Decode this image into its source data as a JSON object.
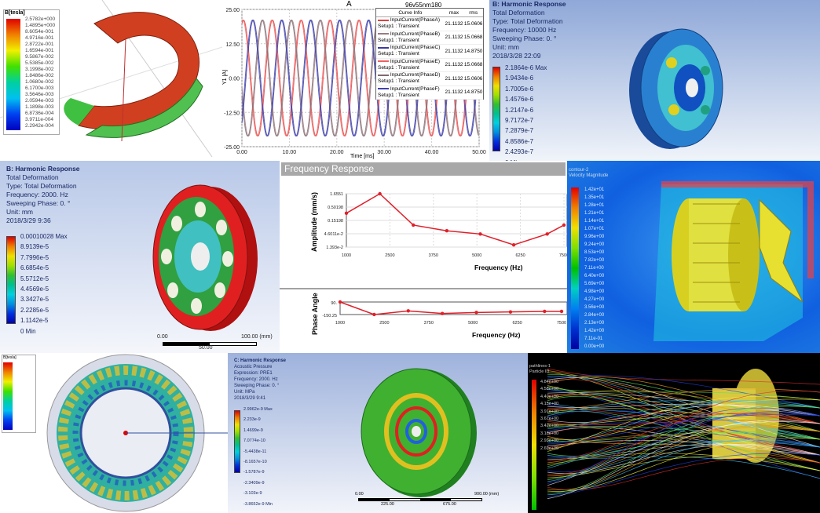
{
  "p1": {
    "legend_title": "B[tesla]",
    "legend_values": [
      "2.5782e+000",
      "1.4895e+000",
      "8.6054e-001",
      "4.9716e-001",
      "2.8722e-001",
      "1.6594e-001",
      "9.5867e-002",
      "5.5385e-002",
      "3.1998e-002",
      "1.8486e-002",
      "1.0680e-002",
      "6.1700e-003",
      "3.5646e-003",
      "2.0594e-003",
      "1.1898e-003",
      "6.8736e-004",
      "3.9711e-004",
      "2.2942e-004"
    ]
  },
  "chart_data": [
    {
      "type": "line",
      "title": "A",
      "subtitle": "96v55nm180",
      "xlabel": "Time [ms]",
      "ylabel": "Y1 [A]",
      "xlim": [
        0,
        50
      ],
      "ylim": [
        -25,
        25
      ],
      "xticks": [
        "0.00",
        "10.00",
        "20.00",
        "30.00",
        "40.00",
        "50.00"
      ],
      "yticks": [
        "25.00",
        "12.50",
        "0.00",
        "-12.50",
        "-25.00"
      ],
      "grid": true,
      "waveform": "sine",
      "amplitude": 21.1132,
      "period_ms": 6.1,
      "legend_headers": [
        "Curve Info",
        "max",
        "rms"
      ],
      "series": [
        {
          "name": "InputCurrent(PhaseA)",
          "source": "Setup1 : Transient",
          "max": "21.1132",
          "rms": "15.0606",
          "color": "#e04040",
          "phase_deg": 0
        },
        {
          "name": "InputCurrent(PhaseB)",
          "source": "Setup1 : Transient",
          "max": "21.1132",
          "rms": "15.0668",
          "color": "#9a7a80",
          "phase_deg": 120
        },
        {
          "name": "InputCurrent(PhaseC)",
          "source": "Setup1 : Transient",
          "max": "21.1132",
          "rms": "14.8750",
          "color": "#3a3aa0",
          "phase_deg": 240
        },
        {
          "name": "InputCurrent(PhaseE)",
          "source": "Setup1 : Transient",
          "max": "21.1132",
          "rms": "15.0668",
          "color": "#f06060",
          "phase_deg": 10
        },
        {
          "name": "InputCurrent(PhaseD)",
          "source": "Setup1 : Transient",
          "max": "21.1132",
          "rms": "15.0606",
          "color": "#806870",
          "phase_deg": 130
        },
        {
          "name": "InputCurrent(PhaseF)",
          "source": "Setup1 : Transient",
          "max": "21.1132",
          "rms": "14.8750",
          "color": "#4040b0",
          "phase_deg": 250
        }
      ]
    },
    {
      "type": "line",
      "title": "Frequency Response",
      "xlabel": "Frequency (Hz)",
      "ylabel": "Amplitude (mm/s)",
      "yscale": "log",
      "xlim": [
        1000,
        7500
      ],
      "xticks": [
        "1000",
        "2500",
        "3750",
        "5000",
        "6250",
        "7500"
      ],
      "yticks": [
        "1.6551",
        "0.50198",
        "0.15198",
        "4.6011e-2",
        "1.393e-2"
      ],
      "grid": true,
      "color": "#e0202a",
      "x": [
        1000,
        2000,
        3000,
        4000,
        5000,
        6000,
        7000,
        7500
      ],
      "y": [
        0.29,
        1.6551,
        0.1,
        0.06,
        0.045,
        0.017,
        0.045,
        0.1
      ]
    },
    {
      "type": "line",
      "xlabel": "Frequency (Hz)",
      "ylabel": "Phase Angle",
      "xlim": [
        1000,
        7500
      ],
      "ylim": [
        -150.25,
        90
      ],
      "xticks": [
        "1000",
        "2500",
        "3750",
        "5000",
        "6250",
        "7500"
      ],
      "yticks": [
        "90.",
        "-150.25"
      ],
      "color": "#e0202a",
      "x": [
        1000,
        2000,
        3000,
        4000,
        5000,
        6000,
        7000,
        7500
      ],
      "y": [
        90,
        -150,
        -80,
        -130,
        -110,
        -100,
        -90,
        -90
      ]
    }
  ],
  "p3": {
    "lines": [
      "B: Harmonic Response",
      "Total Deformation",
      "Type: Total Deformation",
      "Frequency: 10000 Hz",
      "Sweeping Phase: 0. °",
      "Unit: mm",
      "2018/3/28 22:09"
    ],
    "values": [
      "2.1864e-6 Max",
      "1.9434e-6",
      "1.7005e-6",
      "1.4576e-6",
      "1.2147e-6",
      "9.7172e-7",
      "7.2879e-7",
      "4.8586e-7",
      "2.4293e-7",
      "0 Min"
    ]
  },
  "p4": {
    "lines": [
      "B: Harmonic Response",
      "Total Deformation",
      "Type: Total Deformation",
      "Frequency: 2000. Hz",
      "Sweeping Phase: 0. °",
      "Unit: mm",
      "2018/3/29 9:36"
    ],
    "values": [
      "0.00010028 Max",
      "8.9139e-5",
      "7.7996e-5",
      "6.6854e-5",
      "5.5712e-5",
      "4.4569e-5",
      "3.3427e-5",
      "2.2285e-5",
      "1.1142e-5",
      "0 Min"
    ],
    "scale": {
      "start": "0.00",
      "end": "100.00 (mm)",
      "mid": "50.00"
    }
  },
  "p6": {
    "legend_title": "contour-2",
    "legend_subtitle": "Velocity Magnitude",
    "values": [
      "1.42e+01",
      "1.35e+01",
      "1.28e+01",
      "1.21e+01",
      "1.14e+01",
      "1.07e+01",
      "9.96e+00",
      "9.24e+00",
      "8.53e+00",
      "7.82e+00",
      "7.11e+00",
      "6.40e+00",
      "5.69e+00",
      "4.98e+00",
      "4.27e+00",
      "3.56e+00",
      "2.84e+00",
      "2.13e+00",
      "1.42e+00",
      "7.11e-01",
      "0.00e+00"
    ]
  },
  "p7": {
    "legend_title": "B[tesla]"
  },
  "p8": {
    "lines": [
      "C: Harmonic Response",
      "Acoustic Pressure",
      "Expression: PRE1",
      "Frequency: 2000. Hz",
      "Sweeping Phase: 0. °",
      "Unit: MPa",
      "2018/3/29 9:41"
    ],
    "values": [
      "2.9962e-9 Max",
      "2.233e-9",
      "1.4699e-9",
      "7.0774e-10",
      "-5.4438e-11",
      "-8.1657e-10",
      "-1.5787e-9",
      "-2.3409e-9",
      "-3.103e-9",
      "-3.8652e-9 Min"
    ],
    "scale": {
      "start": "0.00",
      "end": "900.00 (mm)",
      "q1": "225.00",
      "q3": "675.00"
    }
  },
  "p9": {
    "legend_title": "pathlines-1",
    "legend_subtitle": "Particle ID",
    "values": [
      "4.84e+00",
      "4.58e+00",
      "4.40e+00",
      "4.15e+00",
      "3.91e+00",
      "3.67e+00",
      "3.42e+00",
      "3.18e+00",
      "2.93e+00",
      "2.69e+00"
    ]
  },
  "colors": {
    "rainbow": [
      "#d00000",
      "#f07000",
      "#f0c000",
      "#c8e000",
      "#40c000",
      "#00c080",
      "#00d0d0",
      "#0090e0",
      "#0040d0",
      "#0000a0"
    ],
    "curve_red": "#e0202a"
  }
}
